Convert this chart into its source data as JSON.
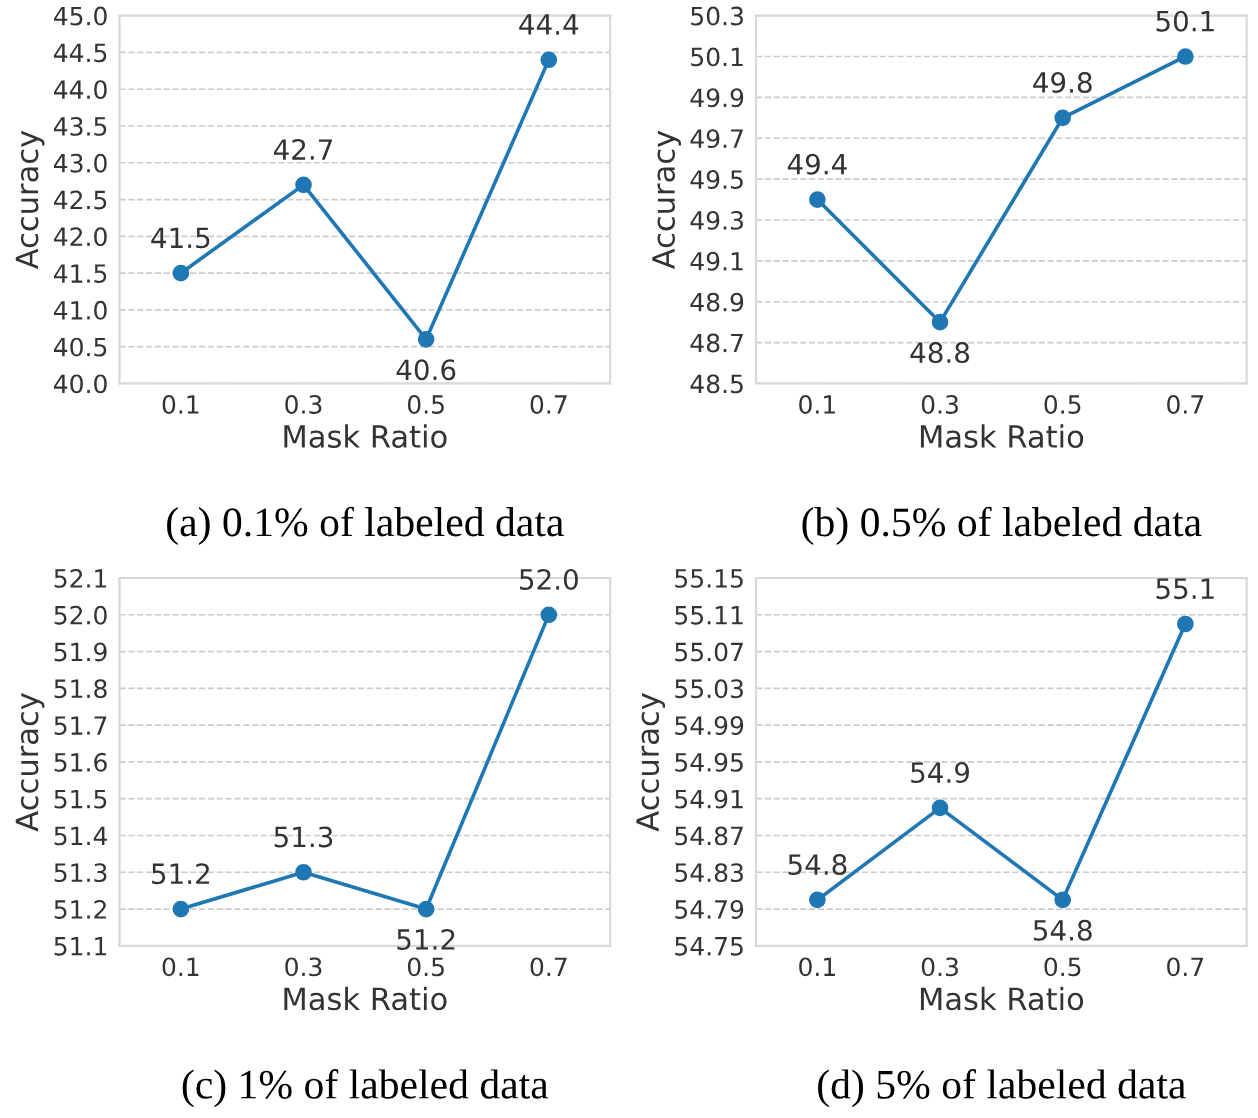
{
  "chart_data": [
    {
      "type": "line",
      "title": "(a) 0.1% of labeled data",
      "xlabel": "Mask Ratio",
      "ylabel": "Accuracy",
      "categories": [
        "0.1",
        "0.3",
        "0.5",
        "0.7"
      ],
      "series": [
        {
          "color": "#1f77b4",
          "values": [
            41.5,
            42.7,
            40.6,
            44.4
          ],
          "value_labels": [
            "41.5",
            "42.7",
            "40.6",
            "44.4"
          ]
        }
      ],
      "ylim": [
        40.0,
        45.0
      ],
      "yticks": [
        {
          "value": 40.0,
          "label": "40.0"
        },
        {
          "value": 40.5,
          "label": "40.5"
        },
        {
          "value": 41.0,
          "label": "41.0"
        },
        {
          "value": 41.5,
          "label": "41.5"
        },
        {
          "value": 42.0,
          "label": "42.0"
        },
        {
          "value": 42.5,
          "label": "42.5"
        },
        {
          "value": 43.0,
          "label": "43.0"
        },
        {
          "value": 43.5,
          "label": "43.5"
        },
        {
          "value": 44.0,
          "label": "44.0"
        },
        {
          "value": 44.5,
          "label": "44.5"
        },
        {
          "value": 45.0,
          "label": "45.0"
        }
      ],
      "grid": "y",
      "marker": "circle",
      "line_style": "solid"
    },
    {
      "type": "line",
      "title": "(b) 0.5% of labeled data",
      "xlabel": "Mask Ratio",
      "ylabel": "Accuracy",
      "categories": [
        "0.1",
        "0.3",
        "0.5",
        "0.7"
      ],
      "series": [
        {
          "color": "#1f77b4",
          "values": [
            49.4,
            48.8,
            49.8,
            50.1
          ],
          "value_labels": [
            "49.4",
            "48.8",
            "49.8",
            "50.1"
          ]
        }
      ],
      "ylim": [
        48.5,
        50.3
      ],
      "yticks": [
        48.5,
        48.7,
        48.9,
        49.1,
        49.3,
        49.5,
        49.7,
        49.9,
        50.1,
        50.3
      ],
      "grid": "y",
      "marker": "circle",
      "line_style": "solid"
    },
    {
      "type": "line",
      "title": "(c) 1% of labeled data",
      "xlabel": "Mask Ratio",
      "ylabel": "Accuracy",
      "categories": [
        "0.1",
        "0.3",
        "0.5",
        "0.7"
      ],
      "series": [
        {
          "color": "#1f77b4",
          "values": [
            51.2,
            51.3,
            51.2,
            52.0
          ],
          "value_labels": [
            "51.2",
            "51.3",
            "51.2",
            "52.0"
          ]
        }
      ],
      "ylim": [
        51.1,
        52.1
      ],
      "yticks": [
        51.1,
        51.2,
        51.3,
        51.4,
        51.5,
        51.6,
        51.7,
        51.8,
        51.9,
        {
          "value": 52.0,
          "label": "52.0"
        },
        52.1
      ],
      "grid": "y",
      "marker": "circle",
      "line_style": "solid"
    },
    {
      "type": "line",
      "title": "(d) 5% of labeled data",
      "xlabel": "Mask Ratio",
      "ylabel": "Accuracy",
      "categories": [
        "0.1",
        "0.3",
        "0.5",
        "0.7"
      ],
      "series": [
        {
          "color": "#1f77b4",
          "values": [
            54.8,
            54.9,
            54.8,
            55.1
          ],
          "value_labels": [
            "54.8",
            "54.9",
            "54.8",
            "55.1"
          ]
        }
      ],
      "ylim": [
        54.75,
        55.15
      ],
      "yticks": [
        54.75,
        54.79,
        54.83,
        54.87,
        54.91,
        54.95,
        54.99,
        55.03,
        55.07,
        55.11,
        55.15
      ],
      "grid": "y",
      "marker": "circle",
      "line_style": "solid"
    }
  ]
}
